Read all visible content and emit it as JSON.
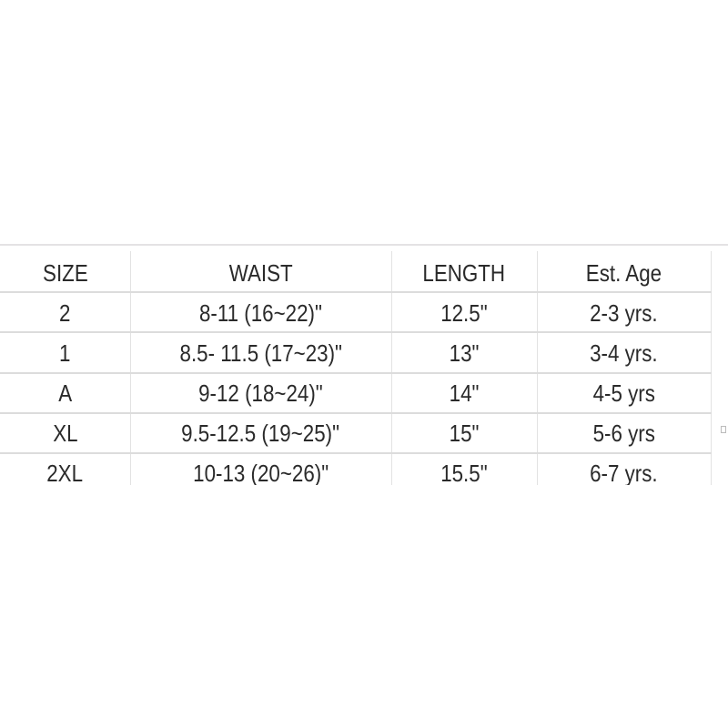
{
  "table": {
    "headers": [
      "SIZE",
      "WAIST",
      "LENGTH",
      "Est. Age"
    ],
    "rows": [
      [
        "2",
        "8-11 (16~22)\"",
        "12.5\"",
        "2-3 yrs."
      ],
      [
        "1",
        "8.5- 11.5 (17~23)\"",
        "13\"",
        "3-4 yrs."
      ],
      [
        "A",
        "9-12 (18~24)\"",
        "14\"",
        "4-5 yrs"
      ],
      [
        "XL",
        "9.5-12.5 (19~25)\"",
        "15\"",
        "5-6 yrs"
      ],
      [
        "2XL",
        "10-13 (20~26)\"",
        "15.5\"",
        "6-7 yrs."
      ]
    ]
  }
}
